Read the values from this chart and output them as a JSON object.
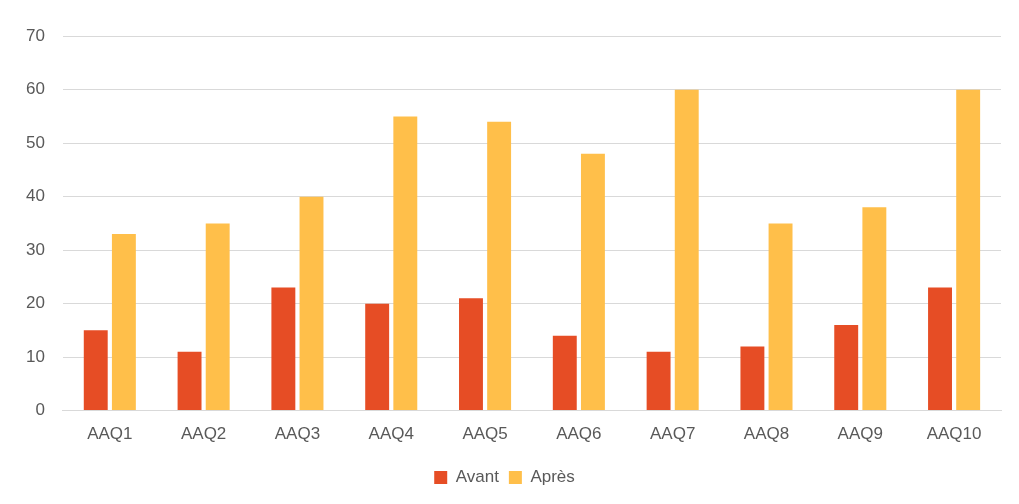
{
  "chart_data": {
    "type": "bar",
    "categories": [
      "AAQ1",
      "AAQ2",
      "AAQ3",
      "AAQ4",
      "AAQ5",
      "AAQ6",
      "AAQ7",
      "AAQ8",
      "AAQ9",
      "AAQ10"
    ],
    "series": [
      {
        "name": "Avant",
        "color": "#e64d25",
        "values": [
          15,
          11,
          23,
          20,
          21,
          14,
          11,
          12,
          16,
          23
        ]
      },
      {
        "name": "Après",
        "color": "#ffbf4a",
        "values": [
          33,
          35,
          40,
          55,
          54,
          48,
          60,
          35,
          38,
          60
        ]
      }
    ],
    "ylim": [
      0,
      70
    ],
    "yticks": [
      0,
      10,
      20,
      30,
      40,
      50,
      60,
      70
    ],
    "grid": "y",
    "legend": "bottom"
  }
}
